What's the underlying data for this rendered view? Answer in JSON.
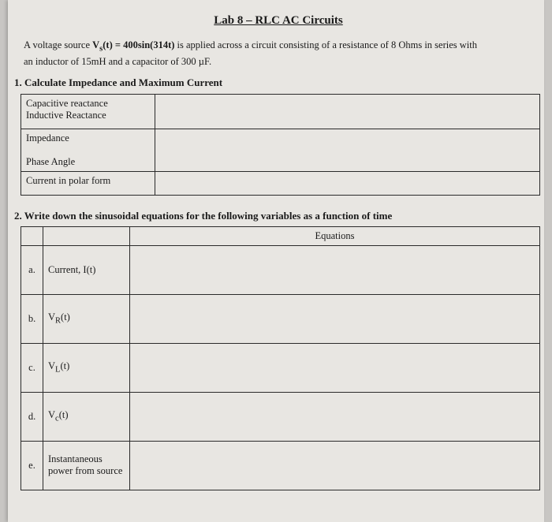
{
  "title": "Lab 8 – RLC AC Circuits",
  "intro_parts": {
    "p1": "A voltage source ",
    "vs": "V",
    "vs_sub": "s",
    "vs_t": "(t) = 400sin(314t)",
    "p2": " is applied across a circuit consisting of a resistance of 8 Ohms in series with",
    "p3": "an inductor of 15mH and a capacitor of 300 µF."
  },
  "section1": {
    "heading": "1.  Calculate Impedance and Maximum Current",
    "rows": [
      "Capacitive reactance",
      "Inductive Reactance",
      "Impedance",
      "Phase Angle",
      "Current in polar form"
    ]
  },
  "section2": {
    "heading": "2.  Write down the sinusoidal equations for the following variables as a function of time",
    "header_col": "Equations",
    "rows": [
      {
        "idx": "a.",
        "label": "Current, I(t)"
      },
      {
        "idx": "b.",
        "label_v": "V",
        "label_sub": "R",
        "label_t": "(t)"
      },
      {
        "idx": "c.",
        "label_v": "V",
        "label_sub": "L",
        "label_t": "(t)"
      },
      {
        "idx": "d.",
        "label_v": "V",
        "label_sub": "c",
        "label_t": "(t)"
      },
      {
        "idx": "e.",
        "label": "Instantaneous power from source"
      }
    ]
  },
  "colors": {
    "background": "#c8c6c3",
    "page_bg": "#e8e6e2",
    "border": "#2a2a2a",
    "text": "#1a1a1a"
  }
}
